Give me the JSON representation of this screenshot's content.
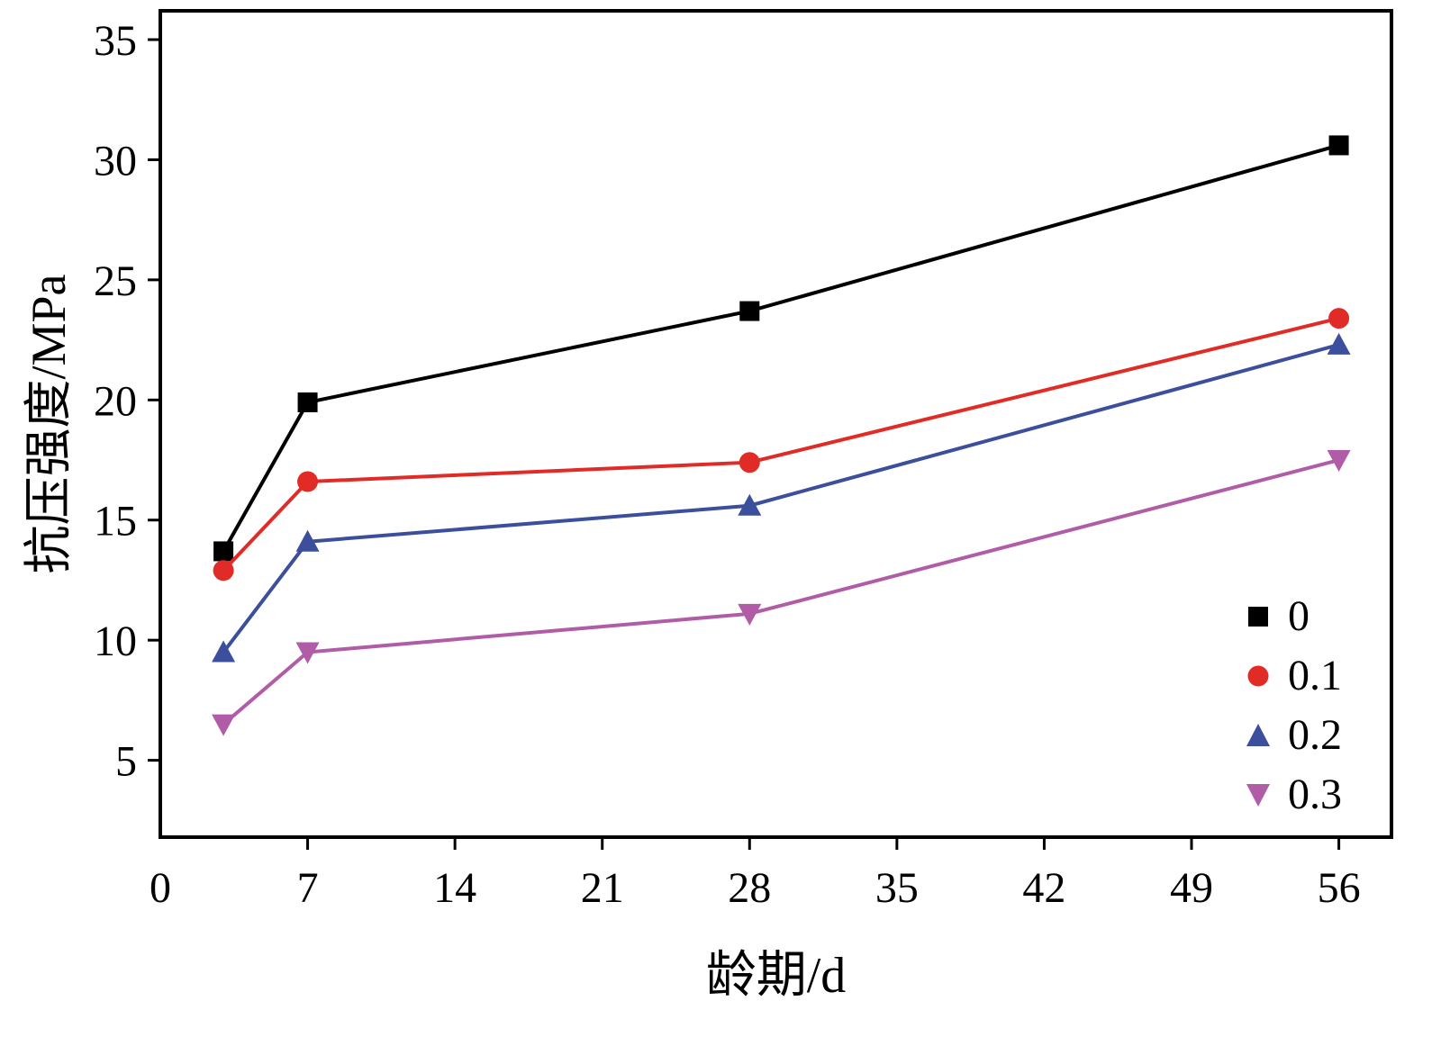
{
  "figure": {
    "background": "#ffffff",
    "axis_color": "#000000"
  },
  "chart_data": {
    "type": "line",
    "title": "",
    "xlabel": "龄期/d",
    "ylabel": "抗压强度/MPa",
    "x": [
      3,
      7,
      28,
      56
    ],
    "series": [
      {
        "name": "0",
        "values": [
          13.7,
          19.9,
          23.7,
          30.6
        ],
        "color": "#000000",
        "marker": "square"
      },
      {
        "name": "0.1",
        "values": [
          12.9,
          16.6,
          17.4,
          23.4
        ],
        "color": "#e12b26",
        "marker": "circle"
      },
      {
        "name": "0.2",
        "values": [
          9.5,
          14.1,
          15.6,
          22.3
        ],
        "color": "#3b4f9c",
        "marker": "triangle-up"
      },
      {
        "name": "0.3",
        "values": [
          6.5,
          9.5,
          11.1,
          17.5
        ],
        "color": "#b05ca7",
        "marker": "triangle-down"
      }
    ],
    "x_ticks": [
      0,
      7,
      14,
      21,
      28,
      35,
      42,
      49,
      56
    ],
    "y_ticks": [
      5,
      10,
      15,
      20,
      25,
      30,
      35
    ],
    "xlim": [
      0,
      58.5
    ],
    "ylim": [
      1.8,
      36.2
    ],
    "grid": false,
    "legend_position": "inside lower right"
  }
}
